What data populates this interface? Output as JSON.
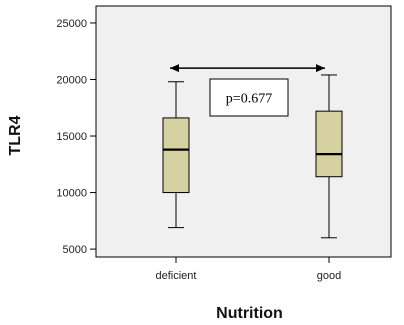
{
  "chart_data": {
    "type": "boxplot",
    "xlabel": "Nutrition",
    "ylabel": "TLR4",
    "categories": [
      "deficient",
      "good"
    ],
    "boxes": [
      {
        "category": "deficient",
        "min": 6900,
        "q1": 10000,
        "median": 13800,
        "q3": 16600,
        "max": 19800
      },
      {
        "category": "good",
        "min": 6000,
        "q1": 11400,
        "median": 13400,
        "q3": 17200,
        "max": 20400
      }
    ],
    "ylim": [
      4300,
      26500
    ],
    "yticks": [
      5000,
      10000,
      15000,
      20000,
      25000
    ],
    "annotation": {
      "text": "p=0.677",
      "arrow": "double-headed",
      "between": [
        "deficient",
        "good"
      ],
      "arrow_value": 21000
    },
    "colors": {
      "plot_bg": "#f0f0f0",
      "box_fill": "#d6d1a0",
      "line": "#000000"
    }
  }
}
